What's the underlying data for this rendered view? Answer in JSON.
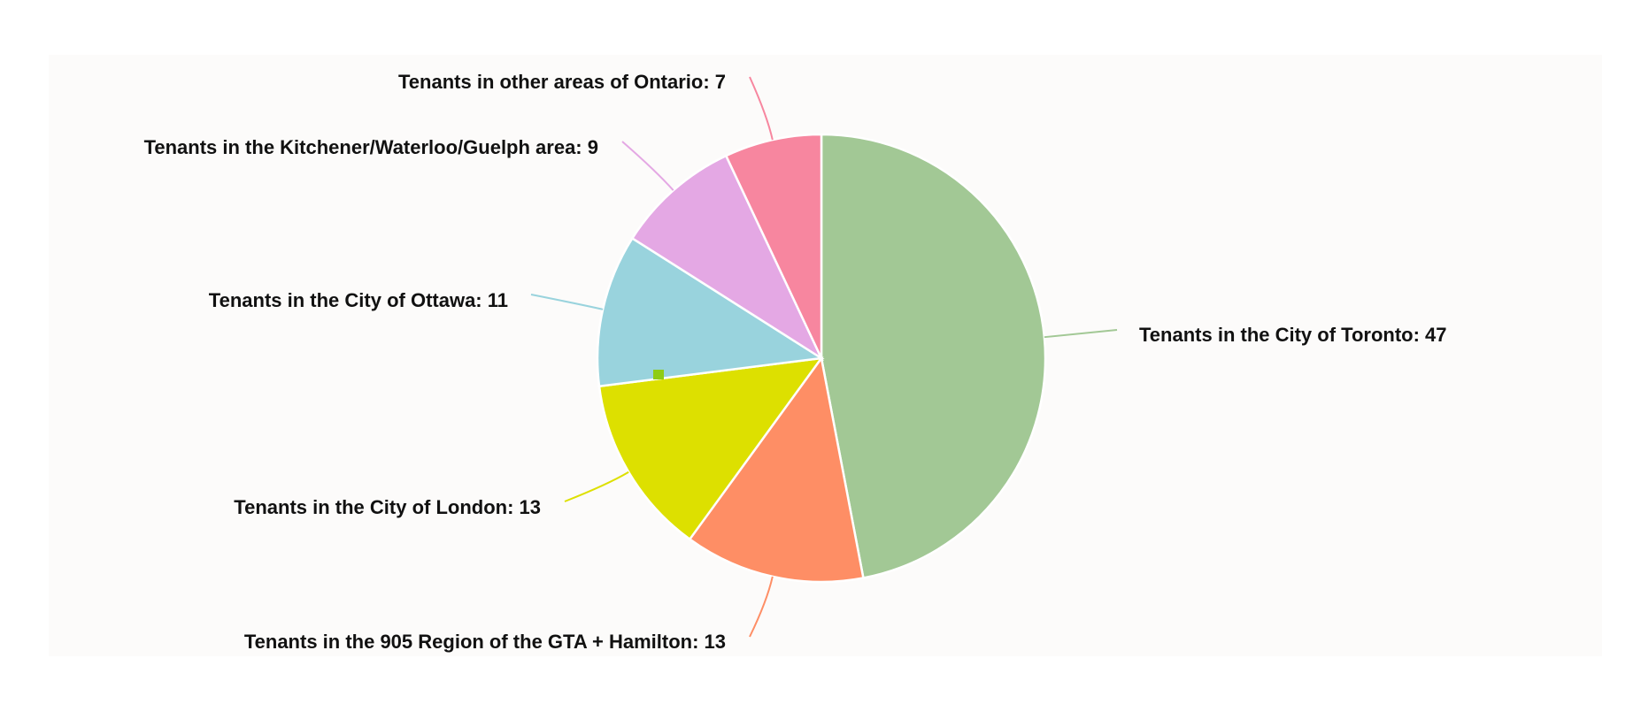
{
  "chart_data": {
    "type": "pie",
    "title": "",
    "slices": [
      {
        "label": "Tenants in the City of Toronto: 47",
        "value": 47,
        "color": "#a2c895"
      },
      {
        "label": "Tenants in the 905 Region of the GTA + Hamilton: 13",
        "value": 13,
        "color": "#fe8e65"
      },
      {
        "label": "Tenants in the City of London: 13",
        "value": 13,
        "color": "#dde000"
      },
      {
        "label": "Tenants in the City of Ottawa: 11",
        "value": 11,
        "color": "#99d3dd"
      },
      {
        "label": "Tenants in the Kitchener/Waterloo/Guelph area: 9",
        "value": 9,
        "color": "#e4a8e4"
      },
      {
        "label": "Tenants in other areas of Ontario: 7",
        "value": 7,
        "color": "#f7869f"
      }
    ]
  }
}
